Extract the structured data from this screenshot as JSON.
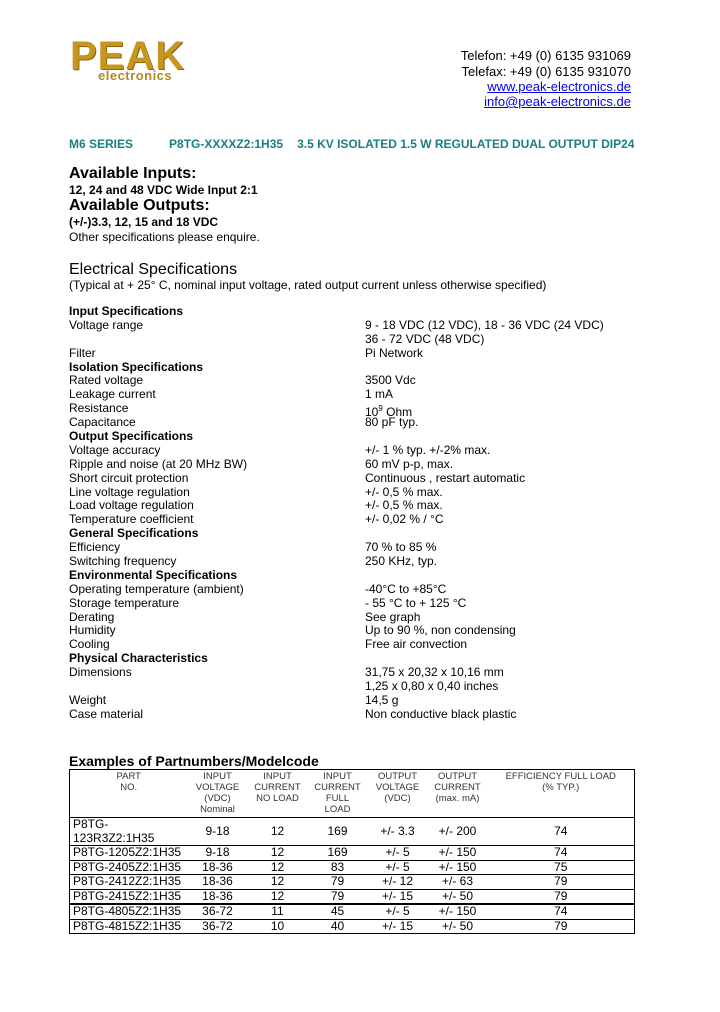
{
  "logo": {
    "brand": "PEAK",
    "sub": "electronics",
    "color": "#c8961e"
  },
  "contact": {
    "telefon": "Telefon: +49 (0) 6135 931069",
    "telefax": "Telefax: +49 (0) 6135 931070",
    "web": "www.peak-electronics.de",
    "email": "info@peak-electronics.de"
  },
  "series": {
    "name": "M6 SERIES",
    "model": "P8TG-XXXXZ2:1H35",
    "description": "3.5 KV ISOLATED 1.5 W REGULATED DUAL OUTPUT DIP24",
    "color": "#1a7f7f"
  },
  "intro": {
    "inputs_heading": "Available Inputs:",
    "inputs": "12, 24 and 48 VDC Wide Input 2:1",
    "outputs_heading": "Available Outputs:",
    "outputs": "(+/-)3.3, 12, 15 and 18 VDC",
    "other": "Other specifications please enquire."
  },
  "electrical": {
    "heading": "Electrical Specifications",
    "note": "(Typical at + 25° C, nominal input voltage, rated output current unless otherwise specified)"
  },
  "specs": [
    {
      "label": "Input Specifications",
      "section": true
    },
    {
      "label": "Voltage range",
      "value": "9 - 18 VDC (12 VDC), 18 - 36 VDC (24 VDC)"
    },
    {
      "label": "",
      "value": "36 - 72 VDC (48 VDC)"
    },
    {
      "label": "Filter",
      "value": "Pi Network"
    },
    {
      "label": "Isolation Specifications",
      "section": true
    },
    {
      "label": "Rated voltage",
      "value": "3500 Vdc"
    },
    {
      "label": "Leakage current",
      "value": "1 mA"
    },
    {
      "label": "Resistance",
      "value": "10",
      "sup": "9",
      "value_after": " Ohm"
    },
    {
      "label": "Capacitance",
      "value": "80 pF typ."
    },
    {
      "label": "Output Specifications",
      "section": true
    },
    {
      "label": "Voltage accuracy",
      "value": "+/- 1 % typ. +/-2% max."
    },
    {
      "label": "Ripple and noise (at 20 MHz BW)",
      "value": "60 mV p-p, max."
    },
    {
      "label": "Short circuit protection",
      "value": "Continuous , restart automatic"
    },
    {
      "label": "Line voltage regulation",
      "value": "+/- 0,5 % max."
    },
    {
      "label": "Load voltage regulation",
      "value": "+/- 0,5 % max."
    },
    {
      "label": "Temperature coefficient",
      "value": "+/- 0,02 % / °C"
    },
    {
      "label": "General Specifications",
      "section": true
    },
    {
      "label": "Efficiency",
      "value": "70 % to 85 %"
    },
    {
      "label": "Switching frequency",
      "value": "250 KHz, typ."
    },
    {
      "label": "Environmental Specifications",
      "section": true
    },
    {
      "label": "Operating temperature (ambient)",
      "value": "-40°C to +85°C"
    },
    {
      "label": "Storage temperature",
      "value": "- 55 °C to + 125 °C"
    },
    {
      "label": "Derating",
      "value": "See graph"
    },
    {
      "label": "Humidity",
      "value": "Up to 90 %, non condensing"
    },
    {
      "label": "Cooling",
      "value": "Free air convection"
    },
    {
      "label": "Physical Characteristics",
      "section": true
    },
    {
      "label": "Dimensions",
      "value": "31,75 x 20,32 x 10,16 mm"
    },
    {
      "label": "",
      "value": "1,25 x 0,80 x 0,40 inches"
    },
    {
      "label": "Weight",
      "value": "14,5 g"
    },
    {
      "label": "Case material",
      "value": "Non conductive black plastic"
    }
  ],
  "examples": {
    "heading": "Examples of Partnumbers/Modelcode",
    "headers": [
      [
        "PART",
        "NO."
      ],
      [
        "INPUT",
        "VOLTAGE",
        "(VDC)",
        "Nominal"
      ],
      [
        "INPUT",
        "CURRENT",
        "NO LOAD"
      ],
      [
        "INPUT",
        "CURRENT",
        "FULL",
        "LOAD"
      ],
      [
        "OUTPUT",
        "VOLTAGE",
        "(VDC)"
      ],
      [
        "OUTPUT",
        "CURRENT",
        "(max. mA)"
      ],
      [
        "EFFICIENCY FULL LOAD",
        "(% TYP.)"
      ]
    ],
    "rows": [
      [
        "P8TG-123R3Z2:1H35",
        "9-18",
        "12",
        "169",
        "+/- 3.3",
        "+/- 200",
        "74"
      ],
      [
        "P8TG-1205Z2:1H35",
        "9-18",
        "12",
        "169",
        "+/- 5",
        "+/- 150",
        "74"
      ],
      [
        "P8TG-2405Z2:1H35",
        "18-36",
        "12",
        "83",
        "+/- 5",
        "+/- 150",
        "75"
      ],
      [
        "P8TG-2412Z2:1H35",
        "18-36",
        "12",
        "79",
        "+/- 12",
        "+/- 63",
        "79"
      ],
      [
        "P8TG-2415Z2:1H35",
        "18-36",
        "12",
        "79",
        "+/- 15",
        "+/- 50",
        "79"
      ],
      [
        "P8TG-4805Z2:1H35",
        "36-72",
        "11",
        "45",
        "+/- 5",
        "+/- 150",
        "74"
      ],
      [
        "P8TG-4815Z2:1H35",
        "36-72",
        "10",
        "40",
        "+/- 15",
        "+/- 50",
        "79"
      ]
    ]
  }
}
